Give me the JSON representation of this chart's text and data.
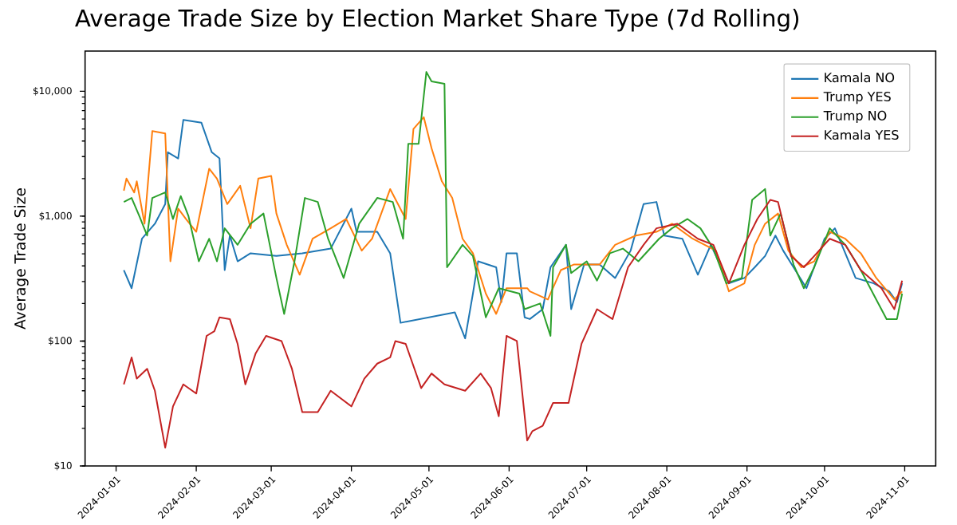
{
  "chart_data": {
    "type": "line",
    "title": "Average Trade Size by Election Market Share Type (7d Rolling)",
    "ylabel": "Average Trade Size",
    "log": "y",
    "legend": "top right",
    "xlim": [
      "2023-12-20",
      "2024-11-13"
    ],
    "xticks": [
      "2024-01-01",
      "2024-02-01",
      "2024-03-01",
      "2024-04-01",
      "2024-05-01",
      "2024-06-01",
      "2024-07-01",
      "2024-08-01",
      "2024-09-01",
      "2024-10-01",
      "2024-11-01"
    ],
    "ylim": [
      10,
      21000
    ],
    "yticks": [
      {
        "value": 10,
        "label": "$10"
      },
      {
        "value": 100,
        "label": "$100"
      },
      {
        "value": 1000,
        "label": "$1,000"
      },
      {
        "value": 10000,
        "label": "$10,000"
      }
    ],
    "series": [
      {
        "name": "Kamala NO",
        "color": "#1f77b4",
        "x": [
          "2024-01-04",
          "2024-01-07",
          "2024-01-11",
          "2024-01-16",
          "2024-01-20",
          "2024-01-21",
          "2024-01-25",
          "2024-01-27",
          "2024-02-03",
          "2024-02-07",
          "2024-02-10",
          "2024-02-12",
          "2024-02-14",
          "2024-02-17",
          "2024-02-22",
          "2024-03-03",
          "2024-03-13",
          "2024-03-24",
          "2024-04-01",
          "2024-04-03",
          "2024-04-11",
          "2024-04-16",
          "2024-04-20",
          "2024-05-11",
          "2024-05-15",
          "2024-05-18",
          "2024-05-20",
          "2024-05-27",
          "2024-05-29",
          "2024-05-31",
          "2024-06-04",
          "2024-06-07",
          "2024-06-09",
          "2024-06-14",
          "2024-06-17",
          "2024-06-23",
          "2024-06-25",
          "2024-06-30",
          "2024-07-06",
          "2024-07-12",
          "2024-07-18",
          "2024-07-23",
          "2024-07-28",
          "2024-07-31",
          "2024-08-07",
          "2024-08-13",
          "2024-08-18",
          "2024-08-25",
          "2024-08-31",
          "2024-09-04",
          "2024-09-08",
          "2024-09-12",
          "2024-09-15",
          "2024-09-19",
          "2024-09-24",
          "2024-10-01",
          "2024-10-05",
          "2024-10-13",
          "2024-10-20",
          "2024-10-26",
          "2024-10-29",
          "2024-10-31"
        ],
        "values": [
          370,
          265,
          660,
          870,
          1250,
          3250,
          2900,
          5900,
          5600,
          3250,
          2900,
          370,
          700,
          435,
          505,
          480,
          505,
          550,
          1150,
          750,
          750,
          505,
          140,
          170,
          105,
          240,
          435,
          390,
          205,
          505,
          505,
          155,
          150,
          180,
          390,
          590,
          180,
          410,
          410,
          320,
          530,
          1250,
          1300,
          700,
          660,
          340,
          590,
          290,
          320,
          390,
          480,
          700,
          530,
          390,
          265,
          660,
          800,
          320,
          290,
          250,
          205,
          290
        ]
      },
      {
        "name": "Trump YES",
        "color": "#ff7f0e",
        "x": [
          "2024-01-04",
          "2024-01-05",
          "2024-01-08",
          "2024-01-09",
          "2024-01-12",
          "2024-01-15",
          "2024-01-20",
          "2024-01-22",
          "2024-01-25",
          "2024-01-28",
          "2024-02-01",
          "2024-02-06",
          "2024-02-09",
          "2024-02-13",
          "2024-02-18",
          "2024-02-22",
          "2024-02-25",
          "2024-03-01",
          "2024-03-03",
          "2024-03-07",
          "2024-03-12",
          "2024-03-17",
          "2024-03-24",
          "2024-03-30",
          "2024-04-05",
          "2024-04-09",
          "2024-04-16",
          "2024-04-22",
          "2024-04-25",
          "2024-04-29",
          "2024-05-02",
          "2024-05-06",
          "2024-05-10",
          "2024-05-14",
          "2024-05-18",
          "2024-05-23",
          "2024-05-27",
          "2024-05-31",
          "2024-06-08",
          "2024-06-09",
          "2024-06-16",
          "2024-06-21",
          "2024-06-26",
          "2024-07-06",
          "2024-07-12",
          "2024-07-20",
          "2024-07-28",
          "2024-08-03",
          "2024-08-11",
          "2024-08-20",
          "2024-08-25",
          "2024-08-31",
          "2024-09-04",
          "2024-09-08",
          "2024-09-13",
          "2024-09-17",
          "2024-09-22",
          "2024-09-27",
          "2024-10-03",
          "2024-10-09",
          "2024-10-15",
          "2024-10-21",
          "2024-10-28",
          "2024-10-31"
        ],
        "values": [
          1600,
          2000,
          1550,
          1900,
          870,
          4800,
          4600,
          435,
          1150,
          950,
          750,
          2400,
          2000,
          1250,
          1750,
          800,
          2000,
          2100,
          1050,
          590,
          340,
          660,
          800,
          950,
          530,
          660,
          1650,
          950,
          5000,
          6200,
          3500,
          1900,
          1400,
          660,
          505,
          240,
          165,
          265,
          265,
          250,
          215,
          370,
          410,
          410,
          590,
          700,
          750,
          870,
          660,
          530,
          250,
          290,
          590,
          870,
          1050,
          530,
          390,
          435,
          750,
          660,
          505,
          320,
          215,
          250
        ]
      },
      {
        "name": "Trump NO",
        "color": "#2ca02c",
        "x": [
          "2024-01-04",
          "2024-01-07",
          "2024-01-10",
          "2024-01-13",
          "2024-01-15",
          "2024-01-20",
          "2024-01-23",
          "2024-01-26",
          "2024-01-29",
          "2024-02-02",
          "2024-02-06",
          "2024-02-09",
          "2024-02-12",
          "2024-02-17",
          "2024-02-22",
          "2024-02-27",
          "2024-03-03",
          "2024-03-06",
          "2024-03-10",
          "2024-03-14",
          "2024-03-19",
          "2024-03-23",
          "2024-03-29",
          "2024-04-04",
          "2024-04-11",
          "2024-04-17",
          "2024-04-21",
          "2024-04-23",
          "2024-04-27",
          "2024-04-30",
          "2024-05-02",
          "2024-05-07",
          "2024-05-08",
          "2024-05-14",
          "2024-05-18",
          "2024-05-23",
          "2024-05-28",
          "2024-06-05",
          "2024-06-07",
          "2024-06-13",
          "2024-06-17",
          "2024-06-18",
          "2024-06-23",
          "2024-06-25",
          "2024-07-01",
          "2024-07-05",
          "2024-07-10",
          "2024-07-15",
          "2024-07-21",
          "2024-07-29",
          "2024-08-03",
          "2024-08-09",
          "2024-08-14",
          "2024-08-19",
          "2024-08-24",
          "2024-08-30",
          "2024-09-03",
          "2024-09-08",
          "2024-09-10",
          "2024-09-14",
          "2024-09-19",
          "2024-09-23",
          "2024-09-27",
          "2024-10-03",
          "2024-10-09",
          "2024-10-15",
          "2024-10-21",
          "2024-10-25",
          "2024-10-29",
          "2024-10-31"
        ],
        "values": [
          1300,
          1400,
          1000,
          700,
          1400,
          1550,
          950,
          1450,
          1000,
          435,
          660,
          435,
          800,
          590,
          870,
          1050,
          320,
          165,
          435,
          1400,
          1300,
          660,
          320,
          870,
          1400,
          1300,
          660,
          3800,
          3800,
          14300,
          12000,
          11500,
          390,
          590,
          480,
          155,
          265,
          240,
          180,
          200,
          110,
          390,
          590,
          350,
          435,
          305,
          505,
          550,
          435,
          660,
          800,
          950,
          800,
          550,
          290,
          320,
          1350,
          1650,
          700,
          1050,
          410,
          265,
          390,
          800,
          590,
          370,
          215,
          150,
          150,
          240
        ]
      },
      {
        "name": "Kamala YES",
        "color": "#c42222",
        "x": [
          "2024-01-04",
          "2024-01-07",
          "2024-01-09",
          "2024-01-13",
          "2024-01-16",
          "2024-01-20",
          "2024-01-23",
          "2024-01-27",
          "2024-02-01",
          "2024-02-05",
          "2024-02-08",
          "2024-02-10",
          "2024-02-14",
          "2024-02-17",
          "2024-02-20",
          "2024-02-24",
          "2024-02-28",
          "2024-03-05",
          "2024-03-09",
          "2024-03-13",
          "2024-03-19",
          "2024-03-24",
          "2024-04-01",
          "2024-04-06",
          "2024-04-11",
          "2024-04-16",
          "2024-04-18",
          "2024-04-22",
          "2024-04-28",
          "2024-05-02",
          "2024-05-07",
          "2024-05-15",
          "2024-05-21",
          "2024-05-25",
          "2024-05-28",
          "2024-05-31",
          "2024-06-04",
          "2024-06-08",
          "2024-06-10",
          "2024-06-14",
          "2024-06-18",
          "2024-06-24",
          "2024-06-29",
          "2024-07-05",
          "2024-07-11",
          "2024-07-17",
          "2024-07-23",
          "2024-07-28",
          "2024-08-05",
          "2024-08-13",
          "2024-08-19",
          "2024-08-25",
          "2024-08-31",
          "2024-09-05",
          "2024-09-10",
          "2024-09-13",
          "2024-09-18",
          "2024-09-23",
          "2024-09-27",
          "2024-10-03",
          "2024-10-09",
          "2024-10-15",
          "2024-10-23",
          "2024-10-28",
          "2024-10-31"
        ],
        "values": [
          45,
          74,
          50,
          60,
          40,
          14,
          30,
          45,
          38,
          110,
          120,
          155,
          150,
          95,
          45,
          80,
          110,
          100,
          60,
          27,
          27,
          40,
          30,
          50,
          66,
          74,
          100,
          95,
          42,
          55,
          45,
          40,
          55,
          42,
          25,
          110,
          100,
          16,
          19,
          21,
          32,
          32,
          95,
          180,
          150,
          390,
          590,
          800,
          870,
          660,
          590,
          290,
          590,
          950,
          1350,
          1300,
          480,
          390,
          480,
          660,
          590,
          370,
          265,
          180,
          305
        ]
      }
    ]
  }
}
